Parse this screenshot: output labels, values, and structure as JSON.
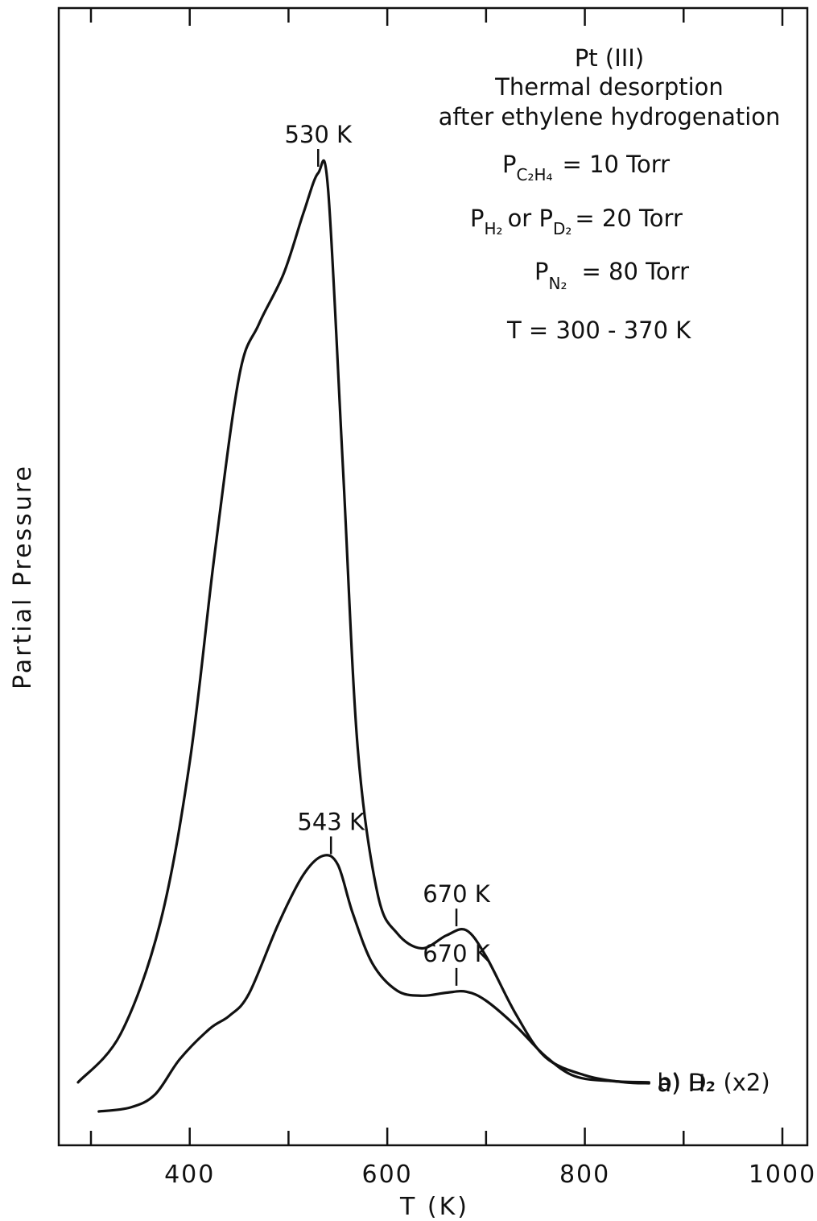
{
  "chart_data": {
    "type": "line",
    "title": "",
    "xlabel": "T (K)",
    "ylabel": "Partial Pressure",
    "xlim": [
      270,
      1010
    ],
    "ylim": [
      0,
      1
    ],
    "grid": false,
    "x_ticks_major": [
      400,
      600,
      800,
      1000
    ],
    "x_tick_labels": [
      "400",
      "600",
      "800",
      "1000"
    ],
    "x_ticks_minor": [
      300,
      500,
      700,
      900
    ],
    "y_tick_count": 0,
    "annotation_text": [
      "Pt (III)",
      "Thermal desorption",
      "after ethylene hydrogenation",
      "T = 300 - 370 K"
    ],
    "pressures": [
      {
        "main": "P",
        "sub": "C₂H₄",
        "value": "= 10 Torr"
      },
      {
        "main": "P",
        "sub": "H₂",
        "mid": "or P",
        "sub2": "D₂",
        "value": "= 20 Torr"
      },
      {
        "main": "P",
        "sub": "N₂",
        "value": "= 80 Torr"
      }
    ],
    "series": [
      {
        "name": "a) H₂",
        "color": "#111111",
        "points": [
          [
            287,
            0.037
          ],
          [
            330,
            0.085
          ],
          [
            370,
            0.195
          ],
          [
            400,
            0.355
          ],
          [
            425,
            0.56
          ],
          [
            450,
            0.738
          ],
          [
            470,
            0.79
          ],
          [
            495,
            0.84
          ],
          [
            515,
            0.9
          ],
          [
            530,
            0.94
          ],
          [
            540,
            0.925
          ],
          [
            555,
            0.65
          ],
          [
            570,
            0.37
          ],
          [
            590,
            0.225
          ],
          [
            610,
            0.185
          ],
          [
            635,
            0.17
          ],
          [
            660,
            0.183
          ],
          [
            680,
            0.188
          ],
          [
            700,
            0.162
          ],
          [
            730,
            0.105
          ],
          [
            760,
            0.062
          ],
          [
            800,
            0.044
          ],
          [
            840,
            0.037
          ],
          [
            865,
            0.036
          ]
        ],
        "peaks": [
          {
            "x": 530,
            "label": "530 K"
          },
          {
            "x": 670,
            "label": "670 K"
          }
        ]
      },
      {
        "name": "b) D₂ (x2)",
        "color": "#111111",
        "points": [
          [
            308,
            0.008
          ],
          [
            340,
            0.012
          ],
          [
            365,
            0.025
          ],
          [
            390,
            0.06
          ],
          [
            420,
            0.09
          ],
          [
            440,
            0.103
          ],
          [
            460,
            0.125
          ],
          [
            490,
            0.195
          ],
          [
            515,
            0.243
          ],
          [
            535,
            0.262
          ],
          [
            550,
            0.253
          ],
          [
            565,
            0.205
          ],
          [
            585,
            0.155
          ],
          [
            610,
            0.128
          ],
          [
            635,
            0.123
          ],
          [
            660,
            0.126
          ],
          [
            680,
            0.127
          ],
          [
            700,
            0.118
          ],
          [
            730,
            0.093
          ],
          [
            760,
            0.063
          ],
          [
            790,
            0.043
          ],
          [
            830,
            0.038
          ],
          [
            865,
            0.037
          ]
        ],
        "peaks": [
          {
            "x": 543,
            "label": "543 K"
          },
          {
            "x": 670,
            "label": "670 K"
          }
        ]
      }
    ],
    "legend": "right"
  }
}
